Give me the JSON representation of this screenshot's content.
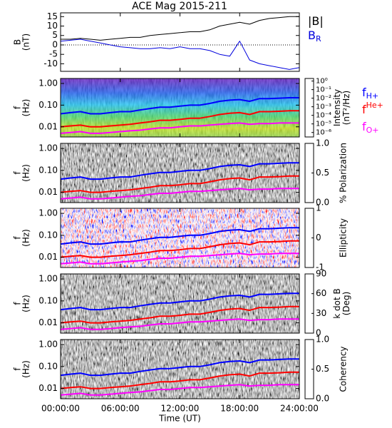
{
  "title": "ACE Mag 2015-211",
  "chart_data": [
    {
      "type": "line",
      "ylabel": [
        "B",
        "(nT)"
      ],
      "x": [
        0,
        1,
        2,
        3,
        4,
        5,
        6,
        7,
        8,
        9,
        10,
        11,
        12,
        13,
        14,
        15,
        16,
        17,
        18,
        19,
        20,
        21,
        22,
        23,
        24
      ],
      "xlim": [
        0,
        24
      ],
      "ylim": [
        -14,
        17
      ],
      "yticks": [
        -10,
        -5,
        0,
        5,
        10,
        15
      ],
      "series": [
        {
          "name": "|B|",
          "color": "#000000",
          "values": [
            3,
            3,
            3.5,
            3,
            2.5,
            3,
            3.5,
            4,
            4,
            5,
            5.5,
            6,
            6.5,
            7,
            7,
            8,
            10,
            11,
            12,
            11,
            13,
            14,
            14.5,
            15,
            15
          ]
        },
        {
          "name": "B",
          "subscript": "R",
          "color": "#0000dd",
          "values": [
            2,
            2.5,
            3,
            2,
            1,
            0,
            -1,
            -1.5,
            -2,
            -2,
            -1.5,
            -2,
            -1,
            -2,
            -2,
            -3,
            -5,
            -6,
            2,
            -8,
            -10,
            -11,
            -12,
            -13,
            -12
          ]
        }
      ]
    },
    {
      "type": "spectrogram",
      "ylabel": [
        "f",
        "(Hz)"
      ],
      "log_y": true,
      "ylim": [
        0.0034,
        1.7
      ],
      "yticks": [
        {
          "value": 1,
          "label": "1.00"
        },
        {
          "value": 0.1,
          "label": "0.10"
        },
        {
          "value": 0.01,
          "label": "0.01"
        }
      ],
      "colormap": "rainbow",
      "log_color": true,
      "clim": [
        3e-07,
        2
      ],
      "cticks": [
        {
          "value": 1,
          "label": "10⁰"
        },
        {
          "value": 0.1,
          "label": "10⁻¹"
        },
        {
          "value": 0.01,
          "label": "10⁻²"
        },
        {
          "value": 0.001,
          "label": "10⁻³"
        },
        {
          "value": 0.0001,
          "label": "10⁻⁴"
        },
        {
          "value": 1e-05,
          "label": "10⁻⁵"
        },
        {
          "value": 1e-06,
          "label": "10⁻⁶"
        }
      ],
      "colorbar_label": [
        "Intensity",
        "(nT²/Hz)"
      ],
      "series": [
        {
          "name": "f",
          "subscript": "H+",
          "color": "#0000ff",
          "values": [
            0.04,
            0.045,
            0.05,
            0.04,
            0.04,
            0.045,
            0.05,
            0.05,
            0.06,
            0.07,
            0.08,
            0.08,
            0.09,
            0.1,
            0.1,
            0.12,
            0.15,
            0.17,
            0.18,
            0.15,
            0.2,
            0.2,
            0.21,
            0.22,
            0.22
          ]
        },
        {
          "name": "f",
          "subscript": "He+",
          "color": "#ff0000",
          "values": [
            0.01,
            0.011,
            0.012,
            0.01,
            0.01,
            0.011,
            0.012,
            0.013,
            0.015,
            0.017,
            0.02,
            0.02,
            0.022,
            0.025,
            0.025,
            0.03,
            0.037,
            0.042,
            0.045,
            0.037,
            0.05,
            0.05,
            0.052,
            0.055,
            0.055
          ]
        },
        {
          "name": "f",
          "subscript": "O+",
          "color": "#ff00ff",
          "values": [
            0.005,
            0.0055,
            0.006,
            0.005,
            0.005,
            0.0055,
            0.006,
            0.0065,
            0.007,
            0.008,
            0.009,
            0.009,
            0.01,
            0.011,
            0.011,
            0.012,
            0.013,
            0.014,
            0.015,
            0.013,
            0.014,
            0.014,
            0.015,
            0.015,
            0.015
          ]
        }
      ]
    },
    {
      "type": "spectrogram",
      "ylabel": [
        "f",
        "(Hz)"
      ],
      "log_y": true,
      "ylim": [
        0.0034,
        1.7
      ],
      "yticks": [
        {
          "value": 1,
          "label": "1.00"
        },
        {
          "value": 0.1,
          "label": "0.10"
        },
        {
          "value": 0.01,
          "label": "0.01"
        }
      ],
      "colormap": "gray",
      "clim": [
        0,
        1
      ],
      "cticks": [
        {
          "value": 0,
          "label": "0.0"
        },
        {
          "value": 0.5,
          "label": "0.5"
        },
        {
          "value": 1,
          "label": "1.0"
        }
      ],
      "colorbar_label": [
        "% Polarization"
      ]
    },
    {
      "type": "spectrogram",
      "ylabel": [
        "f",
        "(Hz)"
      ],
      "log_y": true,
      "ylim": [
        0.0034,
        1.7
      ],
      "yticks": [
        {
          "value": 1,
          "label": "1.00"
        },
        {
          "value": 0.1,
          "label": "0.10"
        },
        {
          "value": 0.01,
          "label": "0.01"
        }
      ],
      "colormap": "bwr",
      "clim": [
        -1,
        1
      ],
      "cticks": [
        -1,
        0,
        1
      ],
      "colorbar_label": [
        "Ellipticity"
      ]
    },
    {
      "type": "spectrogram",
      "ylabel": [
        "f",
        "(Hz)"
      ],
      "log_y": true,
      "ylim": [
        0.0034,
        1.7
      ],
      "yticks": [
        {
          "value": 1,
          "label": "1.00"
        },
        {
          "value": 0.1,
          "label": "0.10"
        },
        {
          "value": 0.01,
          "label": "0.01"
        }
      ],
      "colormap": "gray",
      "clim": [
        0,
        90
      ],
      "cticks": [
        0,
        30,
        60,
        90
      ],
      "colorbar_label": [
        "k dot B",
        "(Deg)"
      ]
    },
    {
      "type": "spectrogram",
      "ylabel": [
        "f",
        "(Hz)"
      ],
      "log_y": true,
      "ylim": [
        0.0034,
        1.7
      ],
      "yticks": [
        {
          "value": 1,
          "label": "1.00"
        },
        {
          "value": 0.1,
          "label": "0.10"
        },
        {
          "value": 0.01,
          "label": "0.01"
        }
      ],
      "colormap": "gray",
      "clim": [
        0,
        1
      ],
      "cticks": [
        {
          "value": 0,
          "label": "0.0"
        },
        {
          "value": 0.5,
          "label": "0.5"
        },
        {
          "value": 1,
          "label": "1.0"
        }
      ],
      "colorbar_label": [
        "Coherency"
      ],
      "xlabel": "Time (UT)",
      "xticks": [
        {
          "value": 0,
          "label": "00:00:00"
        },
        {
          "value": 6,
          "label": "06:00:00"
        },
        {
          "value": 12,
          "label": "12:00:00"
        },
        {
          "value": 18,
          "label": "18:00:00"
        },
        {
          "value": 24,
          "label": "24:00:00"
        }
      ]
    }
  ]
}
